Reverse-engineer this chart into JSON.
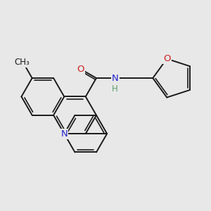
{
  "bg_color": "#e8e8e8",
  "bond_color": "#1a1a1a",
  "bond_width": 1.4,
  "atom_colors": {
    "N": "#2222cc",
    "O": "#cc2222",
    "H": "#5a9f6a",
    "C": "#1a1a1a"
  },
  "font_size_atom": 9.5,
  "figsize": [
    3.0,
    3.0
  ],
  "dpi": 100
}
